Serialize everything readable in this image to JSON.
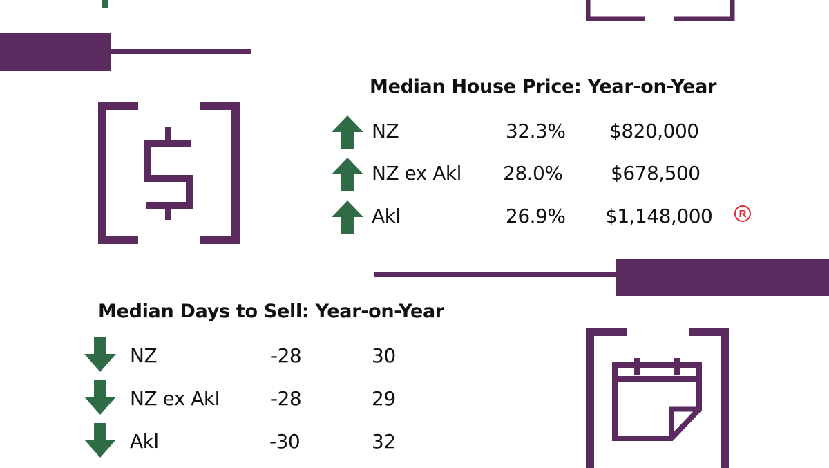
{
  "colors": {
    "accent": "#5b2a5e",
    "arrow": "#2f6b45",
    "registered": "#e0262f"
  },
  "house_price": {
    "title": "Median House Price: Year-on-Year",
    "icon": "dollar-icon",
    "rows": [
      {
        "direction": "up",
        "region": "NZ",
        "change": "32.3%",
        "value": "$820,000"
      },
      {
        "direction": "up",
        "region": "NZ ex Akl",
        "change": "28.0%",
        "value": "$678,500"
      },
      {
        "direction": "up",
        "region": "Akl",
        "change": "26.9%",
        "value": "$1,148,000"
      }
    ],
    "badge": "R"
  },
  "days_to_sell": {
    "title": "Median Days to Sell: Year-on-Year",
    "icon": "calendar-icon",
    "rows": [
      {
        "direction": "down",
        "region": "NZ",
        "change": "-28",
        "value": "30"
      },
      {
        "direction": "down",
        "region": "NZ ex Akl",
        "change": "-28",
        "value": "29"
      },
      {
        "direction": "down",
        "region": "Akl",
        "change": "-30",
        "value": "32"
      }
    ]
  }
}
